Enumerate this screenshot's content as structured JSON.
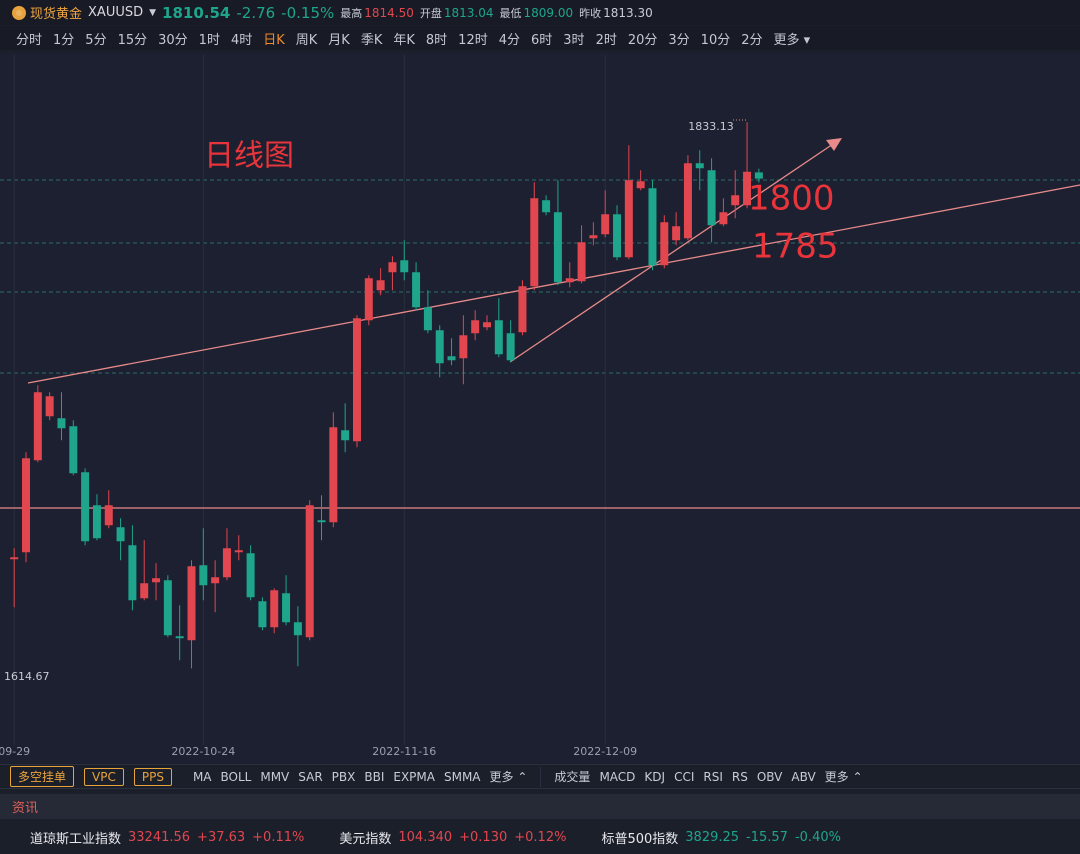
{
  "header": {
    "name": "现货黄金",
    "symbol": "XAUUSD",
    "price": "1810.54",
    "change": "-2.76",
    "change_pct": "-0.15%",
    "high_label": "最高",
    "high": "1814.50",
    "open_label": "开盘",
    "open": "1813.04",
    "low_label": "最低",
    "low": "1809.00",
    "prev_label": "昨收",
    "prev": "1813.30"
  },
  "periods": [
    "分时",
    "1分",
    "5分",
    "15分",
    "30分",
    "1时",
    "4时",
    "日K",
    "周K",
    "月K",
    "季K",
    "年K",
    "8时",
    "12时",
    "4分",
    "6时",
    "3时",
    "2时",
    "20分",
    "3分",
    "10分",
    "2分",
    "更多"
  ],
  "active_period": 7,
  "chart_data": {
    "type": "candlestick",
    "categories": [
      "09-29",
      null,
      null,
      null,
      null,
      null,
      null,
      null,
      null,
      null,
      null,
      null,
      null,
      null,
      null,
      null,
      "2022-10-24",
      null,
      null,
      null,
      null,
      null,
      null,
      null,
      null,
      null,
      null,
      null,
      null,
      null,
      null,
      null,
      null,
      "2022-11-16",
      null,
      null,
      null,
      null,
      null,
      null,
      null,
      null,
      null,
      null,
      null,
      null,
      null,
      null,
      null,
      null,
      "2022-12-09",
      null,
      null,
      null,
      null,
      null,
      null,
      null,
      null,
      null,
      null,
      null,
      null,
      null
    ],
    "open": [
      1658.3,
      1661.1,
      1697.9,
      1715.5,
      1714.7,
      1711.5,
      1693.1,
      1679.9,
      1671.9,
      1671.1,
      1663.9,
      1642.7,
      1649.1,
      1649.9,
      1627.5,
      1625.9,
      1655.9,
      1648.7,
      1651.1,
      1661.1,
      1660.7,
      1641.5,
      1631.1,
      1644.7,
      1633.1,
      1627.1,
      1673.9,
      1673.1,
      1709.9,
      1705.5,
      1753.9,
      1765.9,
      1773.1,
      1777.9,
      1773.1,
      1759.1,
      1749.9,
      1739.5,
      1738.7,
      1748.7,
      1751.1,
      1753.9,
      1748.7,
      1749.1,
      1767.5,
      1801.9,
      1797.1,
      1769.1,
      1769.5,
      1786.7,
      1788.3,
      1796.3,
      1779.1,
      1806.7,
      1806.7,
      1775.9,
      1785.9,
      1786.7,
      1816.7,
      1813.9,
      1792.3,
      1799.9,
      1799.9,
      1813.04
    ],
    "high": [
      1662.7,
      1701.1,
      1727.9,
      1725.1,
      1725.1,
      1713.9,
      1694.7,
      1684.3,
      1685.9,
      1674.7,
      1671.9,
      1665.9,
      1656.7,
      1651.9,
      1639.9,
      1657.9,
      1670.7,
      1657.9,
      1670.7,
      1667.9,
      1663.9,
      1643.1,
      1646.7,
      1651.9,
      1639.5,
      1681.9,
      1683.9,
      1717.1,
      1720.7,
      1755.9,
      1771.9,
      1774.7,
      1779.5,
      1785.9,
      1777.1,
      1765.9,
      1751.9,
      1746.7,
      1755.9,
      1757.9,
      1755.9,
      1762.7,
      1753.9,
      1769.9,
      1809.1,
      1803.9,
      1809.9,
      1777.1,
      1791.9,
      1793.1,
      1805.9,
      1799.9,
      1823.9,
      1813.9,
      1809.9,
      1795.9,
      1797.1,
      1819.9,
      1821.9,
      1818.7,
      1802.7,
      1813.9,
      1833.13,
      1814.5
    ],
    "low": [
      1639.1,
      1657.1,
      1697.1,
      1713.9,
      1705.9,
      1691.9,
      1663.9,
      1665.9,
      1670.7,
      1657.9,
      1637.9,
      1641.9,
      1641.9,
      1627.1,
      1617.9,
      1614.67,
      1641.9,
      1637.1,
      1649.9,
      1657.9,
      1641.9,
      1629.9,
      1628.7,
      1631.9,
      1615.5,
      1625.9,
      1665.9,
      1671.1,
      1701.1,
      1703.1,
      1751.9,
      1763.9,
      1765.9,
      1769.9,
      1757.9,
      1748.7,
      1731.1,
      1735.9,
      1728.3,
      1745.9,
      1749.9,
      1739.1,
      1737.1,
      1747.9,
      1765.9,
      1795.9,
      1767.9,
      1767.1,
      1768.7,
      1783.9,
      1787.1,
      1777.9,
      1778.3,
      1805.9,
      1773.9,
      1774.7,
      1783.9,
      1785.9,
      1805.9,
      1785.1,
      1791.5,
      1794.7,
      1798.7,
      1809
    ],
    "close": [
      1659.1,
      1698.7,
      1725.1,
      1723.5,
      1710.7,
      1692.7,
      1665.5,
      1666.7,
      1679.9,
      1665.5,
      1641.9,
      1648.7,
      1650.7,
      1627.9,
      1626.7,
      1655.5,
      1647.9,
      1651.1,
      1662.7,
      1661.9,
      1643.1,
      1631.1,
      1645.9,
      1633.1,
      1627.9,
      1679.9,
      1673.1,
      1711.1,
      1705.9,
      1754.7,
      1770.7,
      1769.9,
      1777.1,
      1773.1,
      1759.1,
      1749.9,
      1736.7,
      1737.9,
      1747.9,
      1753.9,
      1753.1,
      1740.3,
      1737.9,
      1767.5,
      1802.7,
      1797.1,
      1769.1,
      1770.7,
      1785.1,
      1787.9,
      1796.3,
      1779.1,
      1809.9,
      1809.5,
      1775.9,
      1793.1,
      1791.5,
      1816.7,
      1814.7,
      1791.9,
      1797.1,
      1803.9,
      1813.3,
      1810.54
    ],
    "up_color": "#e2464f",
    "down_color": "#1ea58c",
    "ylim": [
      1584,
      1860
    ],
    "annotations": [
      "日线图",
      "1800",
      "1785"
    ]
  },
  "toolbar": {
    "buttons": [
      "多空挂单",
      "VPC",
      "PPS"
    ],
    "main_indicators": [
      "MA",
      "BOLL",
      "MMV",
      "SAR",
      "PBX",
      "BBI",
      "EXPMA",
      "SMMA"
    ],
    "main_more": "更多",
    "sub_indicators": [
      "成交量",
      "MACD",
      "KDJ",
      "CCI",
      "RSI",
      "RS",
      "OBV",
      "ABV"
    ],
    "sub_more": "更多"
  },
  "news_tab": "资讯",
  "tickers": [
    {
      "name": "道琼斯工业指数",
      "value": "33241.56",
      "change": "+37.63",
      "pct": "+0.11%"
    },
    {
      "name": "美元指数",
      "value": "104.340",
      "change": "+0.130",
      "pct": "+0.12%"
    },
    {
      "name": "标普500指数",
      "value": "3829.25",
      "change": "-15.57",
      "pct": "-0.40%"
    }
  ]
}
